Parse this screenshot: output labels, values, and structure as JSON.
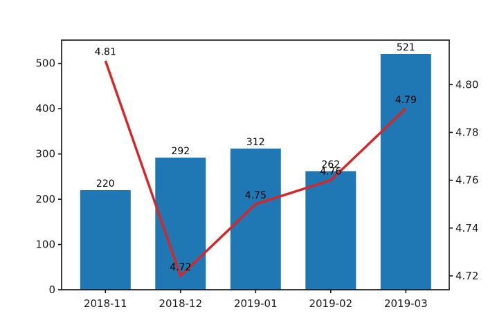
{
  "chart_data": {
    "type": "combo",
    "title": "",
    "categories": [
      "2018-11",
      "2018-12",
      "2019-01",
      "2019-02",
      "2019-03"
    ],
    "series": [
      {
        "name": "bar-series",
        "type": "bar",
        "axis": "left",
        "color": "#1f77b4",
        "values": [
          220,
          292,
          312,
          262,
          521
        ],
        "data_labels": [
          "220",
          "292",
          "312",
          "262",
          "521"
        ]
      },
      {
        "name": "line-series",
        "type": "line",
        "axis": "right",
        "color": "#d62728",
        "values": [
          4.81,
          4.72,
          4.75,
          4.76,
          4.79
        ],
        "data_labels": [
          "4.81",
          "4.72",
          "4.75",
          "4.76",
          "4.79"
        ]
      }
    ],
    "left_axis": {
      "ticks": [
        0,
        100,
        200,
        300,
        400,
        500
      ],
      "tick_labels": [
        "0",
        "100",
        "200",
        "300",
        "400",
        "500"
      ],
      "range": [
        0,
        551.5
      ]
    },
    "right_axis": {
      "ticks": [
        4.72,
        4.74,
        4.76,
        4.78,
        4.8
      ],
      "tick_labels": [
        "4.72",
        "4.74",
        "4.76",
        "4.78",
        "4.80"
      ],
      "range": [
        4.7142,
        4.8186
      ]
    },
    "x_axis": {
      "tick_labels": [
        "2018-11",
        "2018-12",
        "2019-01",
        "2019-02",
        "2019-03"
      ]
    },
    "grid": "off",
    "legend": "none",
    "text_color": "#1a1a1a",
    "background_color": "#ffffff"
  }
}
